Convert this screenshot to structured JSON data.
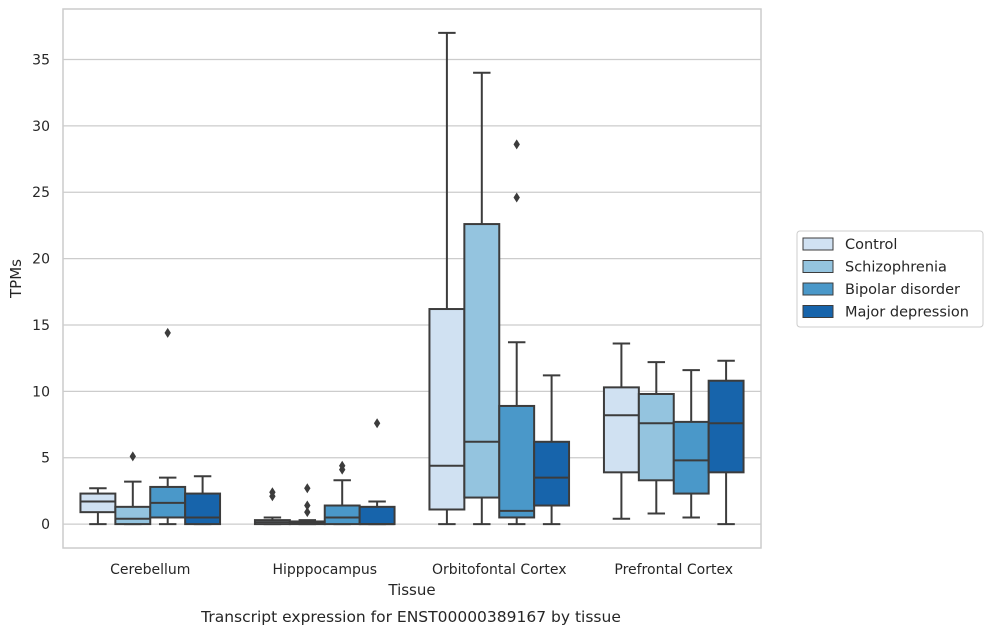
{
  "chart_data": {
    "type": "box",
    "xlabel": "Tissue",
    "ylabel": "TPMs",
    "caption": "Transcript expression for ENST00000389167 by tissue",
    "ylim": [
      -1.8,
      38.8
    ],
    "yticks": [
      0,
      5,
      10,
      15,
      20,
      25,
      30,
      35
    ],
    "grid": "horizontal",
    "legend_placement": "right",
    "categories": [
      "Cerebellum",
      "Hipppocampus",
      "Orbitofontal Cortex",
      "Prefrontal Cortex"
    ],
    "series": [
      {
        "name": "Control",
        "color": "#d0e1f2",
        "boxes": [
          {
            "whislo": 0.0,
            "q1": 0.9,
            "med": 1.7,
            "q3": 2.3,
            "whishi": 2.7,
            "fliers": []
          },
          {
            "whislo": 0.0,
            "q1": 0.0,
            "med": 0.15,
            "q3": 0.3,
            "whishi": 0.5,
            "fliers": [
              2.1,
              2.4
            ]
          },
          {
            "whislo": 0.0,
            "q1": 1.1,
            "med": 4.4,
            "q3": 16.2,
            "whishi": 37.0,
            "fliers": []
          },
          {
            "whislo": 0.4,
            "q1": 3.9,
            "med": 8.2,
            "q3": 10.3,
            "whishi": 13.6,
            "fliers": []
          }
        ]
      },
      {
        "name": "Schizophrenia",
        "color": "#94c4df",
        "boxes": [
          {
            "whislo": 0.0,
            "q1": 0.0,
            "med": 0.4,
            "q3": 1.3,
            "whishi": 3.2,
            "fliers": [
              5.1
            ]
          },
          {
            "whislo": 0.0,
            "q1": 0.0,
            "med": 0.1,
            "q3": 0.2,
            "whishi": 0.3,
            "fliers": [
              0.9,
              1.4,
              2.7
            ]
          },
          {
            "whislo": 0.0,
            "q1": 2.0,
            "med": 6.2,
            "q3": 22.6,
            "whishi": 34.0,
            "fliers": []
          },
          {
            "whislo": 0.8,
            "q1": 3.3,
            "med": 7.6,
            "q3": 9.8,
            "whishi": 12.2,
            "fliers": []
          }
        ]
      },
      {
        "name": "Bipolar disorder",
        "color": "#4a98c9",
        "boxes": [
          {
            "whislo": 0.0,
            "q1": 0.5,
            "med": 1.6,
            "q3": 2.8,
            "whishi": 3.5,
            "fliers": [
              14.4
            ]
          },
          {
            "whislo": 0.0,
            "q1": 0.0,
            "med": 0.5,
            "q3": 1.4,
            "whishi": 3.3,
            "fliers": [
              4.1,
              4.4
            ]
          },
          {
            "whislo": 0.0,
            "q1": 0.5,
            "med": 1.0,
            "q3": 8.9,
            "whishi": 13.7,
            "fliers": [
              24.6,
              28.6
            ]
          },
          {
            "whislo": 0.5,
            "q1": 2.3,
            "med": 4.8,
            "q3": 7.7,
            "whishi": 11.6,
            "fliers": []
          }
        ]
      },
      {
        "name": "Major depression",
        "color": "#1764ab",
        "boxes": [
          {
            "whislo": 0.0,
            "q1": 0.0,
            "med": 0.5,
            "q3": 2.3,
            "whishi": 3.6,
            "fliers": []
          },
          {
            "whislo": 0.0,
            "q1": 0.0,
            "med": 0.0,
            "q3": 1.3,
            "whishi": 1.7,
            "fliers": [
              7.6
            ]
          },
          {
            "whislo": 0.0,
            "q1": 1.4,
            "med": 3.5,
            "q3": 6.2,
            "whishi": 11.2,
            "fliers": []
          },
          {
            "whislo": 0.0,
            "q1": 3.9,
            "med": 7.6,
            "q3": 10.8,
            "whishi": 12.3,
            "fliers": []
          }
        ]
      }
    ]
  }
}
